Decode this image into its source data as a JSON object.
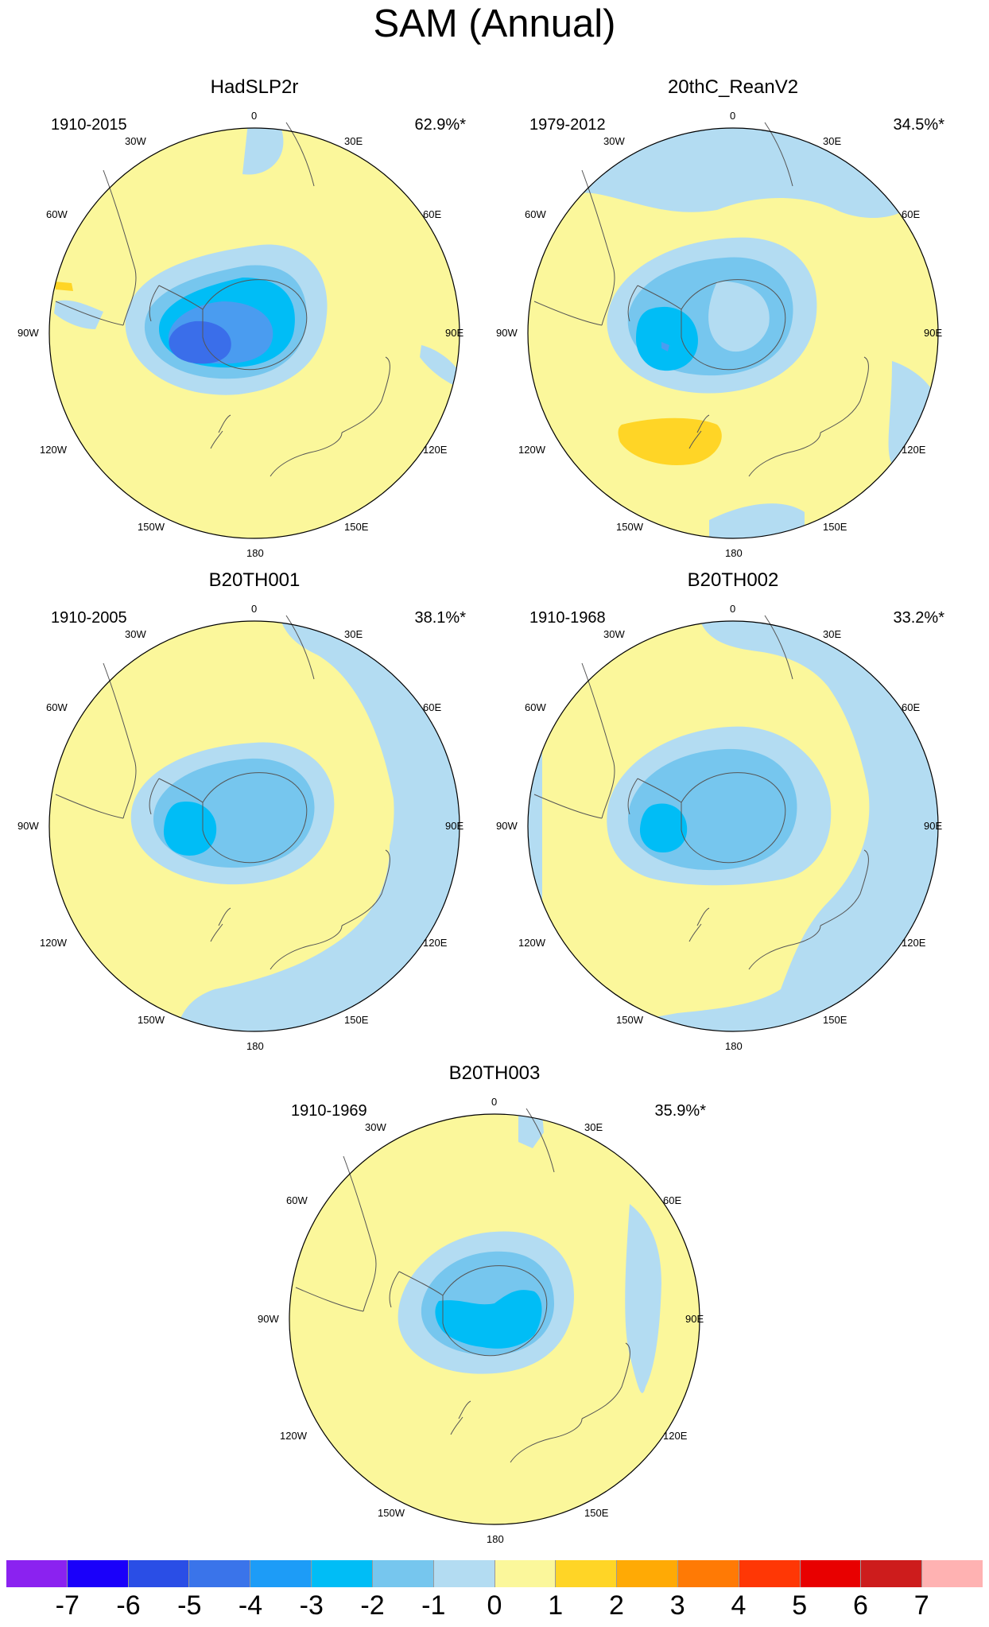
{
  "title": "SAM (Annual)",
  "colors": {
    "pale_yellow": "#fbf79b",
    "light_blue": "#b3dcf2",
    "blue_1": "#76c6ee",
    "blue_2": "#00bdf6",
    "blue_3": "#4a9cf0",
    "blue_4": "#3a6eea",
    "yellow_2": "#ffd526",
    "yellow_3": "#ffaa05",
    "coast": "#555555"
  },
  "graticule_labels": [
    "0",
    "30E",
    "60E",
    "90E",
    "120E",
    "150E",
    "180",
    "150W",
    "120W",
    "90W",
    "60W",
    "30W"
  ],
  "panels": [
    {
      "id": "hadslp2r",
      "title": "HadSLP2r",
      "period": "1910-2015",
      "variance": "62.9%*"
    },
    {
      "id": "20thc-reanv2",
      "title": "20thC_ReanV2",
      "period": "1979-2012",
      "variance": "34.5%*"
    },
    {
      "id": "b20th001",
      "title": "B20TH001",
      "period": "1910-2005",
      "variance": "38.1%*"
    },
    {
      "id": "b20th002",
      "title": "B20TH002",
      "period": "1910-1968",
      "variance": "33.2%*"
    },
    {
      "id": "b20th003",
      "title": "B20TH003",
      "period": "1910-1969",
      "variance": "35.9%*"
    }
  ],
  "colorbar": {
    "colors": [
      "#8b22f0",
      "#1a00fa",
      "#2a4ee6",
      "#3a74ea",
      "#1d9cf7",
      "#00bdf6",
      "#76c6ee",
      "#b3dcf2",
      "#fbf79b",
      "#ffd526",
      "#ffaa05",
      "#ff7a05",
      "#ff3705",
      "#e80000",
      "#cd1c1c",
      "#ffb2b2"
    ],
    "tick_labels": [
      "-7",
      "-6",
      "-5",
      "-4",
      "-3",
      "-2",
      "-1",
      "0",
      "1",
      "2",
      "3",
      "4",
      "5",
      "6",
      "7"
    ]
  }
}
